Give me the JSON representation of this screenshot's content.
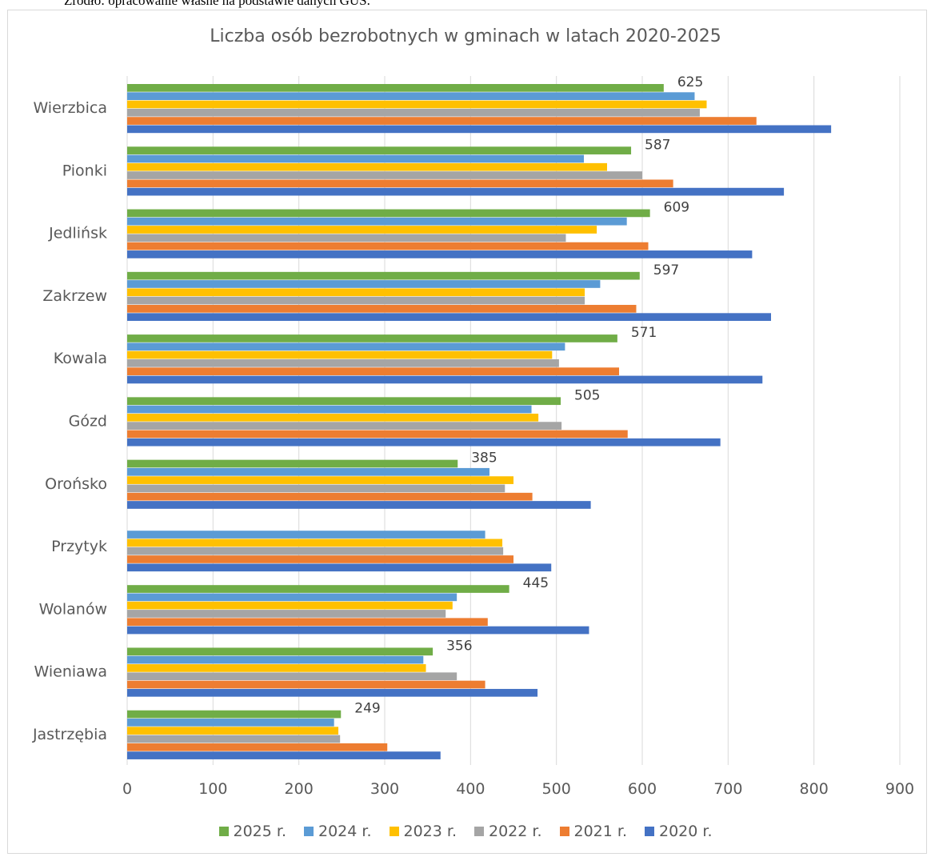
{
  "source_note": "Źródło: opracowanie własne na podstawie danych GUS.",
  "chart_data": {
    "type": "bar",
    "orientation": "horizontal",
    "title": "Liczba osób bezrobotnych w gminach w latach 2020-2025",
    "xlabel": "",
    "ylabel": "",
    "xlim": [
      0,
      900
    ],
    "x_ticks": [
      "0",
      "100",
      "200",
      "300",
      "400",
      "500",
      "600",
      "700",
      "800",
      "900"
    ],
    "grid": "vertical",
    "legend_position": "bottom",
    "categories": [
      "Wierzbica",
      "Pionki",
      "Jedlińsk",
      "Zakrzew",
      "Kowala",
      "Gózd",
      "Orońsko",
      "Przytyk",
      "Wolanów",
      "Wieniawa",
      "Jastrzębia"
    ],
    "series": [
      {
        "name": "2025 r.",
        "color": "#70ad47",
        "values": [
          625,
          587,
          609,
          597,
          571,
          505,
          385,
          null,
          445,
          356,
          249
        ],
        "labels": [
          "625",
          "587",
          "609",
          "597",
          "571",
          "505",
          "385",
          "",
          "445",
          "356",
          "249"
        ]
      },
      {
        "name": "2024 r.",
        "color": "#5b9bd5",
        "values": [
          661,
          532,
          582,
          551,
          510,
          471,
          422,
          417,
          384,
          345,
          241
        ]
      },
      {
        "name": "2023 r.",
        "color": "#ffc000",
        "values": [
          675,
          559,
          547,
          533,
          495,
          479,
          450,
          437,
          379,
          348,
          246
        ]
      },
      {
        "name": "2022 r.",
        "color": "#a5a5a5",
        "values": [
          667,
          600,
          511,
          533,
          503,
          506,
          440,
          438,
          371,
          384,
          248
        ]
      },
      {
        "name": "2021 r.",
        "color": "#ed7d31",
        "values": [
          733,
          636,
          607,
          593,
          573,
          583,
          472,
          450,
          420,
          417,
          303
        ]
      },
      {
        "name": "2020 r.",
        "color": "#4472c4",
        "values": [
          820,
          765,
          728,
          750,
          740,
          691,
          540,
          494,
          538,
          478,
          365
        ]
      }
    ]
  }
}
